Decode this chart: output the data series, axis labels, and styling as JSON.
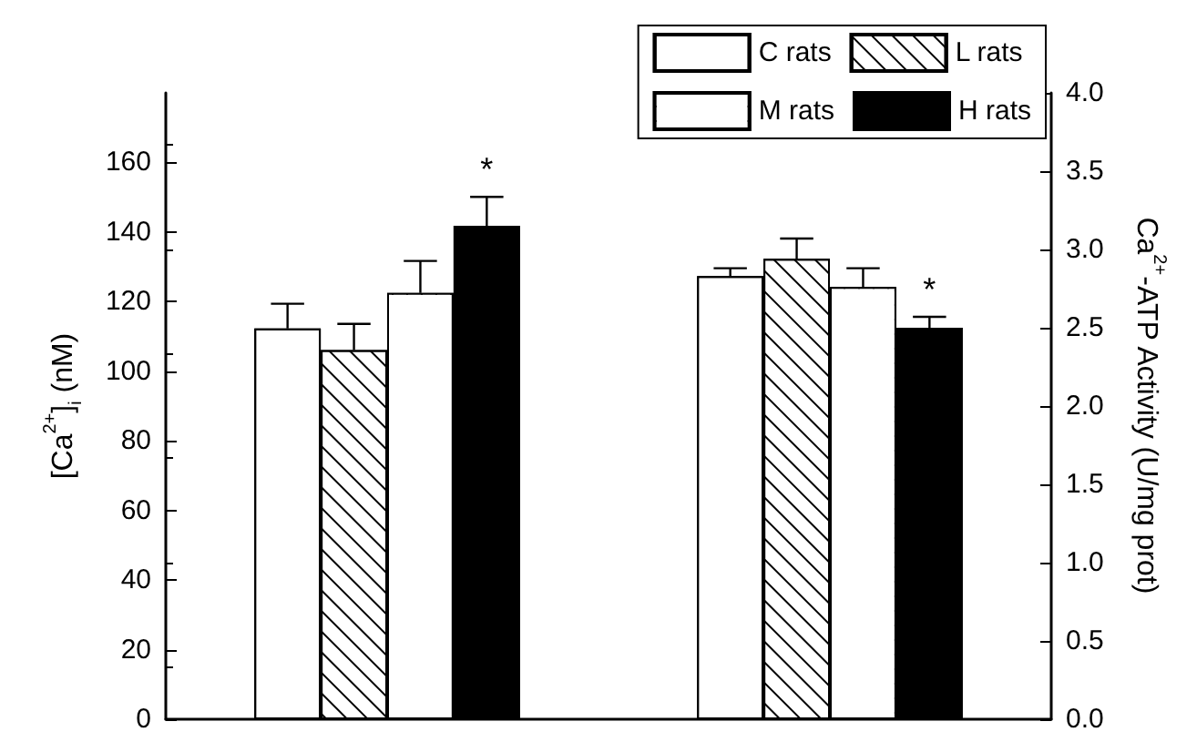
{
  "chart_data": {
    "type": "bar",
    "ylabel": "[Ca$^{2+}$]$_{i}$ (nM)",
    "y2label": "Ca$^{2+}$-ATP Activity (U/mg prot)",
    "categories": [
      null,
      null
    ],
    "series": [
      {
        "name": "C rats",
        "color": "#ffffff",
        "values": [
          112.3,
          null
        ],
        "errors": [
          7.1,
          null
        ]
      },
      {
        "name": "L rats",
        "color": "#ffffff",
        "values": [
          106.1,
          null
        ],
        "errors": [
          7.5,
          null
        ]
      },
      {
        "name": "M rats",
        "color": "#ffffff",
        "values": [
          122.5,
          null
        ],
        "errors": [
          9.2,
          null
        ]
      },
      {
        "name": "H rats",
        "color": "#000000",
        "values": [
          141.8,
          null
        ],
        "errors": [
          8.3,
          null
        ]
      },
      {
        "color": "#ffffff",
        "axis": "y2",
        "values": [
          null,
          2.83
        ],
        "errors": [
          null,
          0.05
        ]
      },
      {
        "color": "#ffffff",
        "axis": "y2",
        "values": [
          null,
          2.94
        ],
        "errors": [
          null,
          0.13
        ]
      },
      {
        "color": "#ffffff",
        "axis": "y2",
        "values": [
          null,
          2.76
        ],
        "errors": [
          null,
          0.12
        ]
      },
      {
        "color": "#000000",
        "axis": "y2",
        "values": [
          null,
          2.5
        ],
        "errors": [
          null,
          0.07
        ]
      }
    ],
    "ylim": [
      0,
      180
    ],
    "yticks": [
      0,
      20,
      40,
      60,
      80,
      100,
      120,
      140,
      160
    ],
    "y2lim": [
      0,
      4.0
    ],
    "y2ticks": [
      {
        "value": 0,
        "label": "0.0"
      },
      {
        "value": 0.5,
        "label": "0.5"
      },
      {
        "value": 1,
        "label": "1.0"
      },
      {
        "value": 1.5,
        "label": "1.5"
      },
      {
        "value": 2,
        "label": "2.0"
      },
      {
        "value": 2.5,
        "label": "2.5"
      },
      {
        "value": 3,
        "label": "3.0"
      },
      {
        "value": 3.5,
        "label": "3.5"
      },
      {
        "value": 4,
        "label": "4.0"
      }
    ],
    "annotations": [
      "*",
      "*"
    ],
    "legend": "top right",
    "grid": false
  }
}
